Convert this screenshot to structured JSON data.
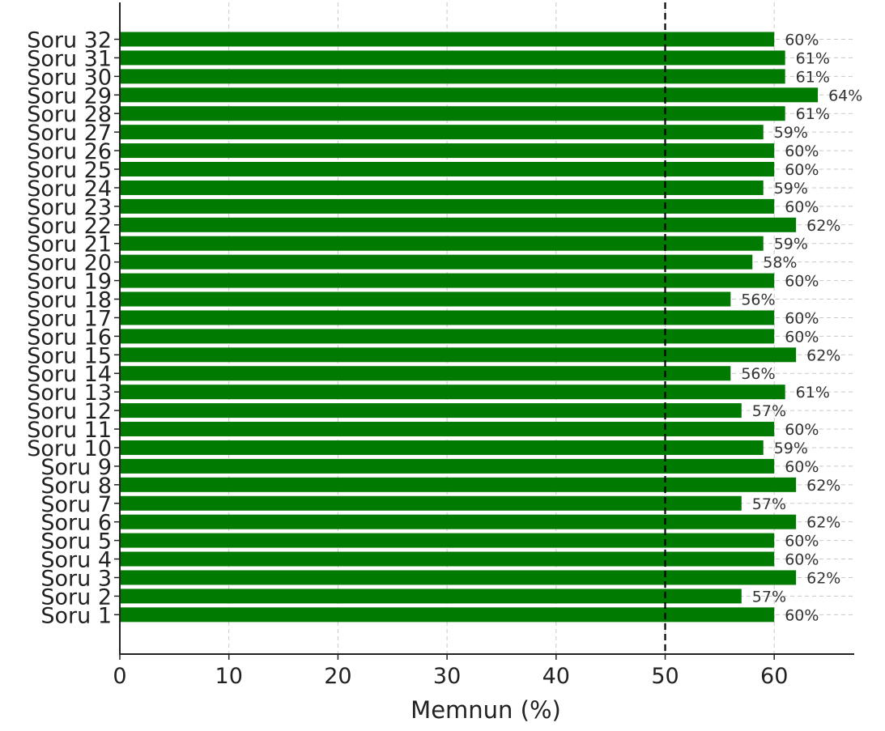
{
  "chart_data": {
    "type": "bar",
    "orientation": "horizontal",
    "categories": [
      "Soru 1",
      "Soru 2",
      "Soru 3",
      "Soru 4",
      "Soru 5",
      "Soru 6",
      "Soru 7",
      "Soru 8",
      "Soru 9",
      "Soru 10",
      "Soru 11",
      "Soru 12",
      "Soru 13",
      "Soru 14",
      "Soru 15",
      "Soru 16",
      "Soru 17",
      "Soru 18",
      "Soru 19",
      "Soru 20",
      "Soru 21",
      "Soru 22",
      "Soru 23",
      "Soru 24",
      "Soru 25",
      "Soru 26",
      "Soru 27",
      "Soru 28",
      "Soru 29",
      "Soru 30",
      "Soru 31",
      "Soru 32"
    ],
    "values": [
      60,
      57,
      62,
      60,
      60,
      62,
      57,
      62,
      60,
      59,
      60,
      57,
      61,
      56,
      62,
      60,
      60,
      56,
      60,
      58,
      59,
      62,
      60,
      59,
      60,
      60,
      59,
      61,
      64,
      61,
      61,
      60
    ],
    "value_labels": [
      "60%",
      "57%",
      "62%",
      "60%",
      "60%",
      "62%",
      "57%",
      "62%",
      "60%",
      "59%",
      "60%",
      "57%",
      "61%",
      "56%",
      "62%",
      "60%",
      "60%",
      "56%",
      "60%",
      "58%",
      "59%",
      "62%",
      "60%",
      "59%",
      "60%",
      "60%",
      "59%",
      "61%",
      "64%",
      "61%",
      "61%",
      "60%"
    ],
    "title": "",
    "xlabel": "Memnun (%)",
    "ylabel": "",
    "xlim": [
      0,
      67
    ],
    "xticks": [
      0,
      10,
      20,
      30,
      40,
      50,
      60
    ],
    "xtick_labels": [
      "0",
      "10",
      "20",
      "30",
      "40",
      "50",
      "60"
    ],
    "reference_line": {
      "value": 50,
      "style": "dashed",
      "color": "#000000"
    },
    "bar_color": "#007a00",
    "grid": true,
    "grid_style": "dashed",
    "grid_color": "#c8c8c8"
  }
}
